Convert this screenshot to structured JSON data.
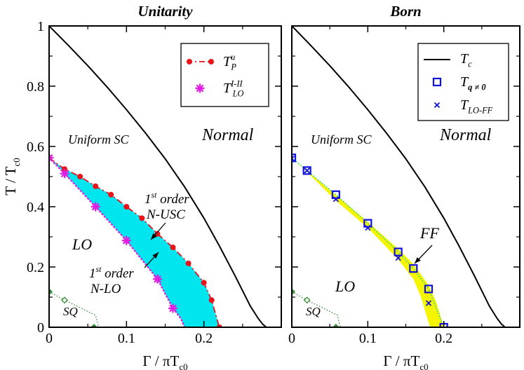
{
  "figure": {
    "y_axis_label": "T / T",
    "y_axis_label_sub": "c0",
    "x_axis_label": "Γ / πT",
    "x_axis_label_sub": "c0"
  },
  "chart_data": [
    {
      "type": "line",
      "title": "Unitarity",
      "xlim": [
        0,
        0.3
      ],
      "ylim": [
        0,
        1
      ],
      "x_ticks": [
        0,
        0.1,
        0.2
      ],
      "x_tick_labels": [
        "0",
        "0.1",
        "0.2"
      ],
      "y_ticks": [
        0,
        0.2,
        0.4,
        0.6,
        0.8,
        1
      ],
      "y_tick_labels": [
        "0",
        "0.2",
        "0.4",
        "0.6",
        "0.8",
        "1"
      ],
      "grid": false,
      "legend_position": "top-right",
      "series": [
        {
          "key": "Tc",
          "style": "solid",
          "color": "#000000",
          "x": [
            0,
            0.025,
            0.05,
            0.075,
            0.1,
            0.125,
            0.15,
            0.175,
            0.2,
            0.22,
            0.24,
            0.26,
            0.27,
            0.276,
            0.2807
          ],
          "y": [
            1,
            0.935,
            0.868,
            0.797,
            0.722,
            0.643,
            0.559,
            0.466,
            0.362,
            0.27,
            0.172,
            0.07,
            0.03,
            0.01,
            0
          ]
        },
        {
          "key": "TPu",
          "name": "T",
          "name_sup": "u",
          "name_sub": "P",
          "style": "dashdot-circles",
          "color": "#e8141b",
          "x": [
            0,
            0.02,
            0.04,
            0.06,
            0.08,
            0.1,
            0.12,
            0.14,
            0.16,
            0.18,
            0.2,
            0.21,
            0.22
          ],
          "y": [
            0.562,
            0.525,
            0.5,
            0.468,
            0.44,
            0.4,
            0.362,
            0.31,
            0.265,
            0.212,
            0.148,
            0.09,
            0
          ]
        },
        {
          "key": "TLO",
          "name": "T",
          "name_sup": "I-II",
          "name_sub": "LO",
          "style": "dotted-stars",
          "color": "#e020e0",
          "x": [
            0,
            0.02,
            0.06,
            0.1,
            0.14,
            0.16
          ],
          "y": [
            0.562,
            0.51,
            0.4,
            0.288,
            0.16,
            0.063
          ],
          "curve_x": [
            0,
            0.02,
            0.06,
            0.1,
            0.14,
            0.16,
            0.17,
            0.175
          ],
          "curve_y": [
            0.562,
            0.51,
            0.4,
            0.288,
            0.16,
            0.063,
            0.03,
            0
          ]
        },
        {
          "key": "SQ",
          "style": "dotted-diamonds",
          "color": "#2e8b2e",
          "x": [
            0,
            0.02,
            0.058
          ],
          "y": [
            0.118,
            0.09,
            0
          ],
          "outline_x": [
            0,
            0.02,
            0.06,
            0.064
          ],
          "outline_y": [
            0.118,
            0.09,
            0.04,
            0
          ]
        }
      ],
      "shaded_region": {
        "color": "#00e5ee",
        "upper_x": [
          0,
          0.02,
          0.04,
          0.06,
          0.08,
          0.1,
          0.12,
          0.14,
          0.16,
          0.18,
          0.2,
          0.21,
          0.22
        ],
        "upper_y": [
          0.562,
          0.525,
          0.5,
          0.468,
          0.44,
          0.4,
          0.362,
          0.31,
          0.265,
          0.212,
          0.148,
          0.09,
          0
        ],
        "lower_x": [
          0,
          0.02,
          0.06,
          0.1,
          0.14,
          0.16,
          0.17,
          0.175
        ],
        "lower_y": [
          0.562,
          0.51,
          0.4,
          0.288,
          0.16,
          0.063,
          0.03,
          0
        ]
      },
      "annotations": {
        "normal": "Normal",
        "uniform": "Uniform SC",
        "lo": "LO",
        "sq": "SQ",
        "first_order_usc_sup": "st",
        "first_order_usc_1": "1",
        "first_order_usc_2": "order",
        "first_order_usc_3": "N-USC",
        "first_order_lo_sup": "st",
        "first_order_lo_1": "1",
        "first_order_lo_2": "order",
        "first_order_lo_3": "N-LO"
      }
    },
    {
      "type": "line",
      "title": "Born",
      "xlim": [
        0,
        0.3
      ],
      "ylim": [
        0,
        1
      ],
      "x_ticks": [
        0,
        0.1,
        0.2
      ],
      "x_tick_labels": [
        "0",
        "0.1",
        "0.2"
      ],
      "y_ticks": [
        0,
        0.2,
        0.4,
        0.6,
        0.8,
        1
      ],
      "grid": false,
      "legend_position": "top-right",
      "series": [
        {
          "key": "Tc",
          "name": "T",
          "name_sub": "c",
          "style": "solid",
          "color": "#000000",
          "x": [
            0,
            0.025,
            0.05,
            0.075,
            0.1,
            0.125,
            0.15,
            0.175,
            0.2,
            0.22,
            0.24,
            0.26,
            0.27,
            0.276,
            0.2807
          ],
          "y": [
            1,
            0.935,
            0.868,
            0.797,
            0.722,
            0.643,
            0.559,
            0.466,
            0.362,
            0.27,
            0.172,
            0.07,
            0.03,
            0.01,
            0
          ]
        },
        {
          "key": "Tq",
          "name": "T",
          "name_sub": "q ≠ 0",
          "style": "squares",
          "color": "#1010e0",
          "x": [
            0,
            0.02,
            0.058,
            0.1,
            0.14,
            0.16,
            0.18,
            0.2
          ],
          "y": [
            0.562,
            0.52,
            0.44,
            0.345,
            0.25,
            0.195,
            0.127,
            0
          ]
        },
        {
          "key": "TLOFF",
          "name": "T",
          "name_sub": "LO-FF",
          "style": "crosses",
          "color": "#1010e0",
          "x": [
            0,
            0.02,
            0.058,
            0.1,
            0.14,
            0.18
          ],
          "y": [
            0.56,
            0.52,
            0.425,
            0.33,
            0.23,
            0.08
          ]
        },
        {
          "key": "SQ",
          "style": "dotted-diamonds",
          "color": "#2e8b2e",
          "x": [
            0,
            0.02,
            0.058
          ],
          "y": [
            0.118,
            0.09,
            0
          ],
          "outline_x": [
            0,
            0.02,
            0.06,
            0.064
          ],
          "outline_y": [
            0.118,
            0.09,
            0.04,
            0
          ]
        }
      ],
      "shaded_region": {
        "color": "#f5f500",
        "upper_x": [
          0,
          0.02,
          0.058,
          0.1,
          0.14,
          0.16,
          0.18,
          0.19,
          0.2
        ],
        "upper_y": [
          0.562,
          0.52,
          0.44,
          0.35,
          0.26,
          0.21,
          0.14,
          0.085,
          0
        ],
        "lower_x": [
          0,
          0.02,
          0.058,
          0.1,
          0.14,
          0.16,
          0.17,
          0.177,
          0.182
        ],
        "lower_y": [
          0.562,
          0.515,
          0.42,
          0.33,
          0.225,
          0.16,
          0.1,
          0.04,
          0
        ]
      },
      "annotations": {
        "normal": "Normal",
        "uniform": "Uniform SC",
        "lo": "LO",
        "sq": "SQ",
        "ff": "FF"
      }
    }
  ]
}
